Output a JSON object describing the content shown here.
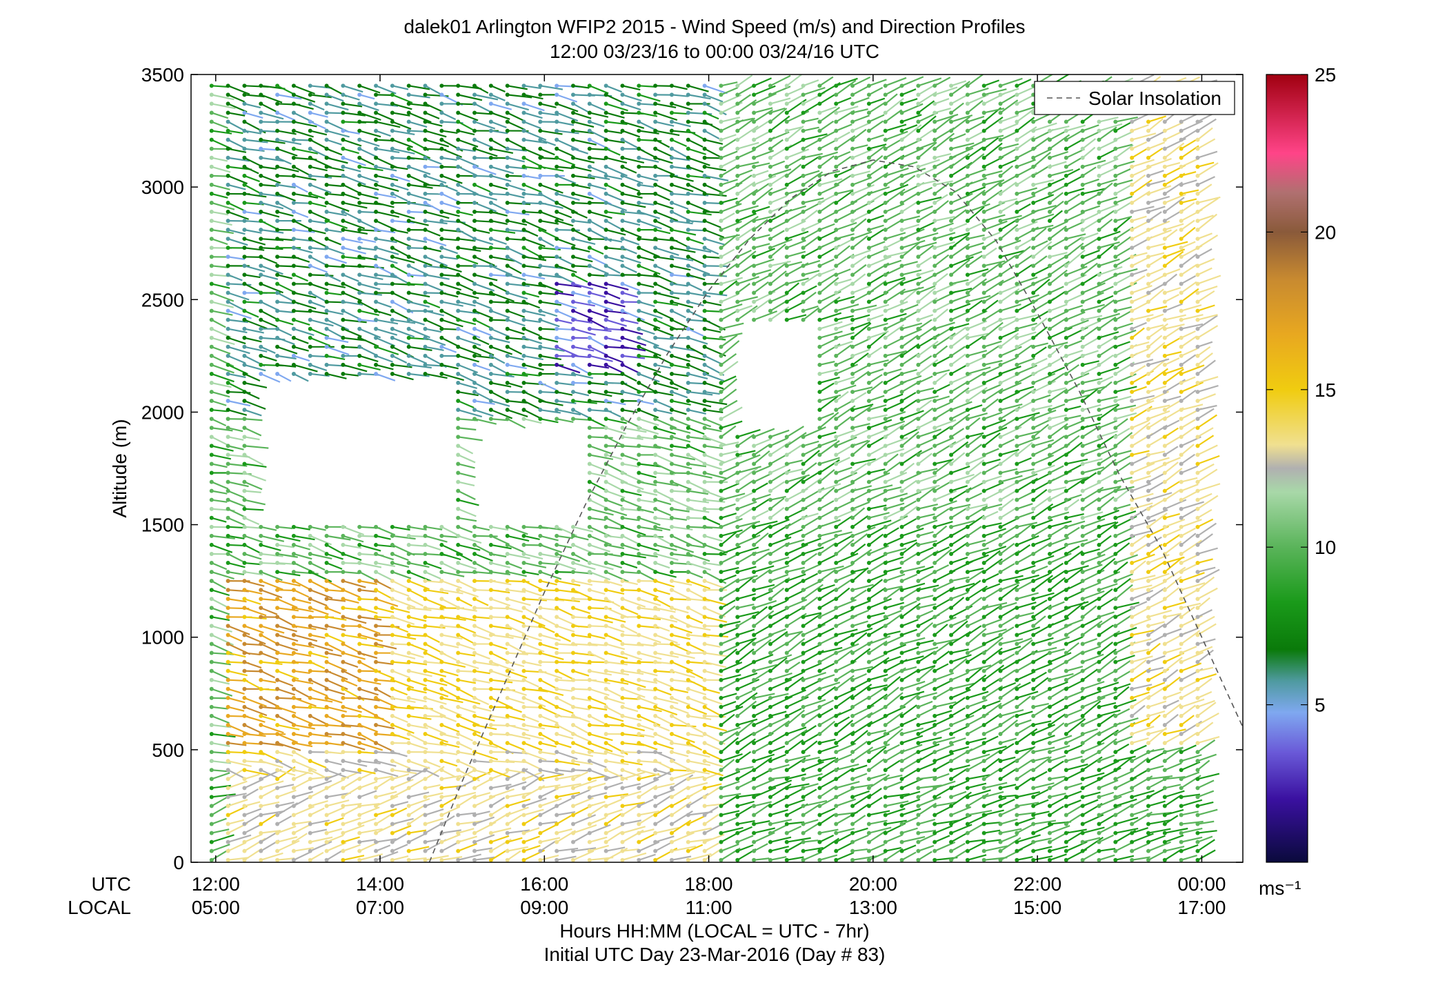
{
  "chart_data": {
    "type": "wind-barb profile (scatter)",
    "title": "dalek01 Arlington WFIP2 2015 - Wind Speed (m/s) and Direction Profiles",
    "subtitle": "12:00 03/23/16 to 00:00 03/24/16  UTC",
    "ylabel": "Altitude (m)",
    "xlabel": "Hours HH:MM  (LOCAL = UTC - 7hr)",
    "xlabel2": "Initial UTC Day 23-Mar-2016 (Day # 83)",
    "xrow_labels": {
      "utc": "UTC",
      "local": "LOCAL"
    },
    "xticks_utc": [
      "12:00",
      "14:00",
      "16:00",
      "18:00",
      "20:00",
      "22:00",
      "00:00"
    ],
    "xticks_local": [
      "05:00",
      "07:00",
      "09:00",
      "11:00",
      "13:00",
      "15:00",
      "17:00"
    ],
    "xtick_hours": [
      12,
      14,
      16,
      18,
      20,
      22,
      24
    ],
    "xlim_hours": [
      11.7,
      24.5
    ],
    "yticks": [
      0,
      500,
      1000,
      1500,
      2000,
      2500,
      3000,
      3500
    ],
    "ylim": [
      0,
      3500
    ],
    "legend": {
      "label": "Solar Insolation",
      "placement": "top-right"
    },
    "colorbar": {
      "unit": "ms⁻¹",
      "ticks": [
        5,
        10,
        15,
        20,
        25
      ],
      "range": [
        0,
        25
      ]
    },
    "solar_insolation_curve": {
      "x_hours": [
        14.6,
        15.0,
        15.5,
        16.0,
        16.5,
        17.0,
        17.5,
        18.0,
        18.5,
        19.0,
        19.5,
        20.0,
        20.5,
        21.0,
        21.5,
        22.0,
        22.5,
        23.0,
        23.5,
        24.0,
        24.5
      ],
      "altitude_m": [
        0,
        360,
        780,
        1200,
        1590,
        1940,
        2260,
        2540,
        2770,
        2950,
        3070,
        3120,
        3090,
        2980,
        2760,
        2440,
        2100,
        1720,
        1400,
        1000,
        600
      ]
    },
    "wind_field_summary": [
      {
        "time_range_utc": "12:00-18:00",
        "altitude_range_m": [
          0,
          500
        ],
        "typical_speed_ms": 14
      },
      {
        "time_range_utc": "12:00-14:00",
        "altitude_range_m": [
          500,
          1250
        ],
        "typical_speed_ms": 18
      },
      {
        "time_range_utc": "14:00-18:00",
        "altitude_range_m": [
          500,
          1250
        ],
        "typical_speed_ms": 15
      },
      {
        "time_range_utc": "18:00-24:00",
        "altitude_range_m": [
          0,
          1500
        ],
        "typical_speed_ms": 10
      },
      {
        "time_range_utc": "12:00-18:00",
        "altitude_range_m": [
          2000,
          3500
        ],
        "typical_speed_ms": 7
      },
      {
        "time_range_utc": "16:00-17:00",
        "altitude_range_m": [
          2200,
          2600
        ],
        "typical_speed_ms": 4
      },
      {
        "time_range_utc": "18:00-24:00",
        "altitude_range_m": [
          1500,
          3500
        ],
        "typical_speed_ms": 11
      },
      {
        "time_range_utc": "23:00-24:00",
        "altitude_range_m": [
          500,
          3500
        ],
        "typical_speed_ms": 14
      }
    ],
    "grid": false
  }
}
